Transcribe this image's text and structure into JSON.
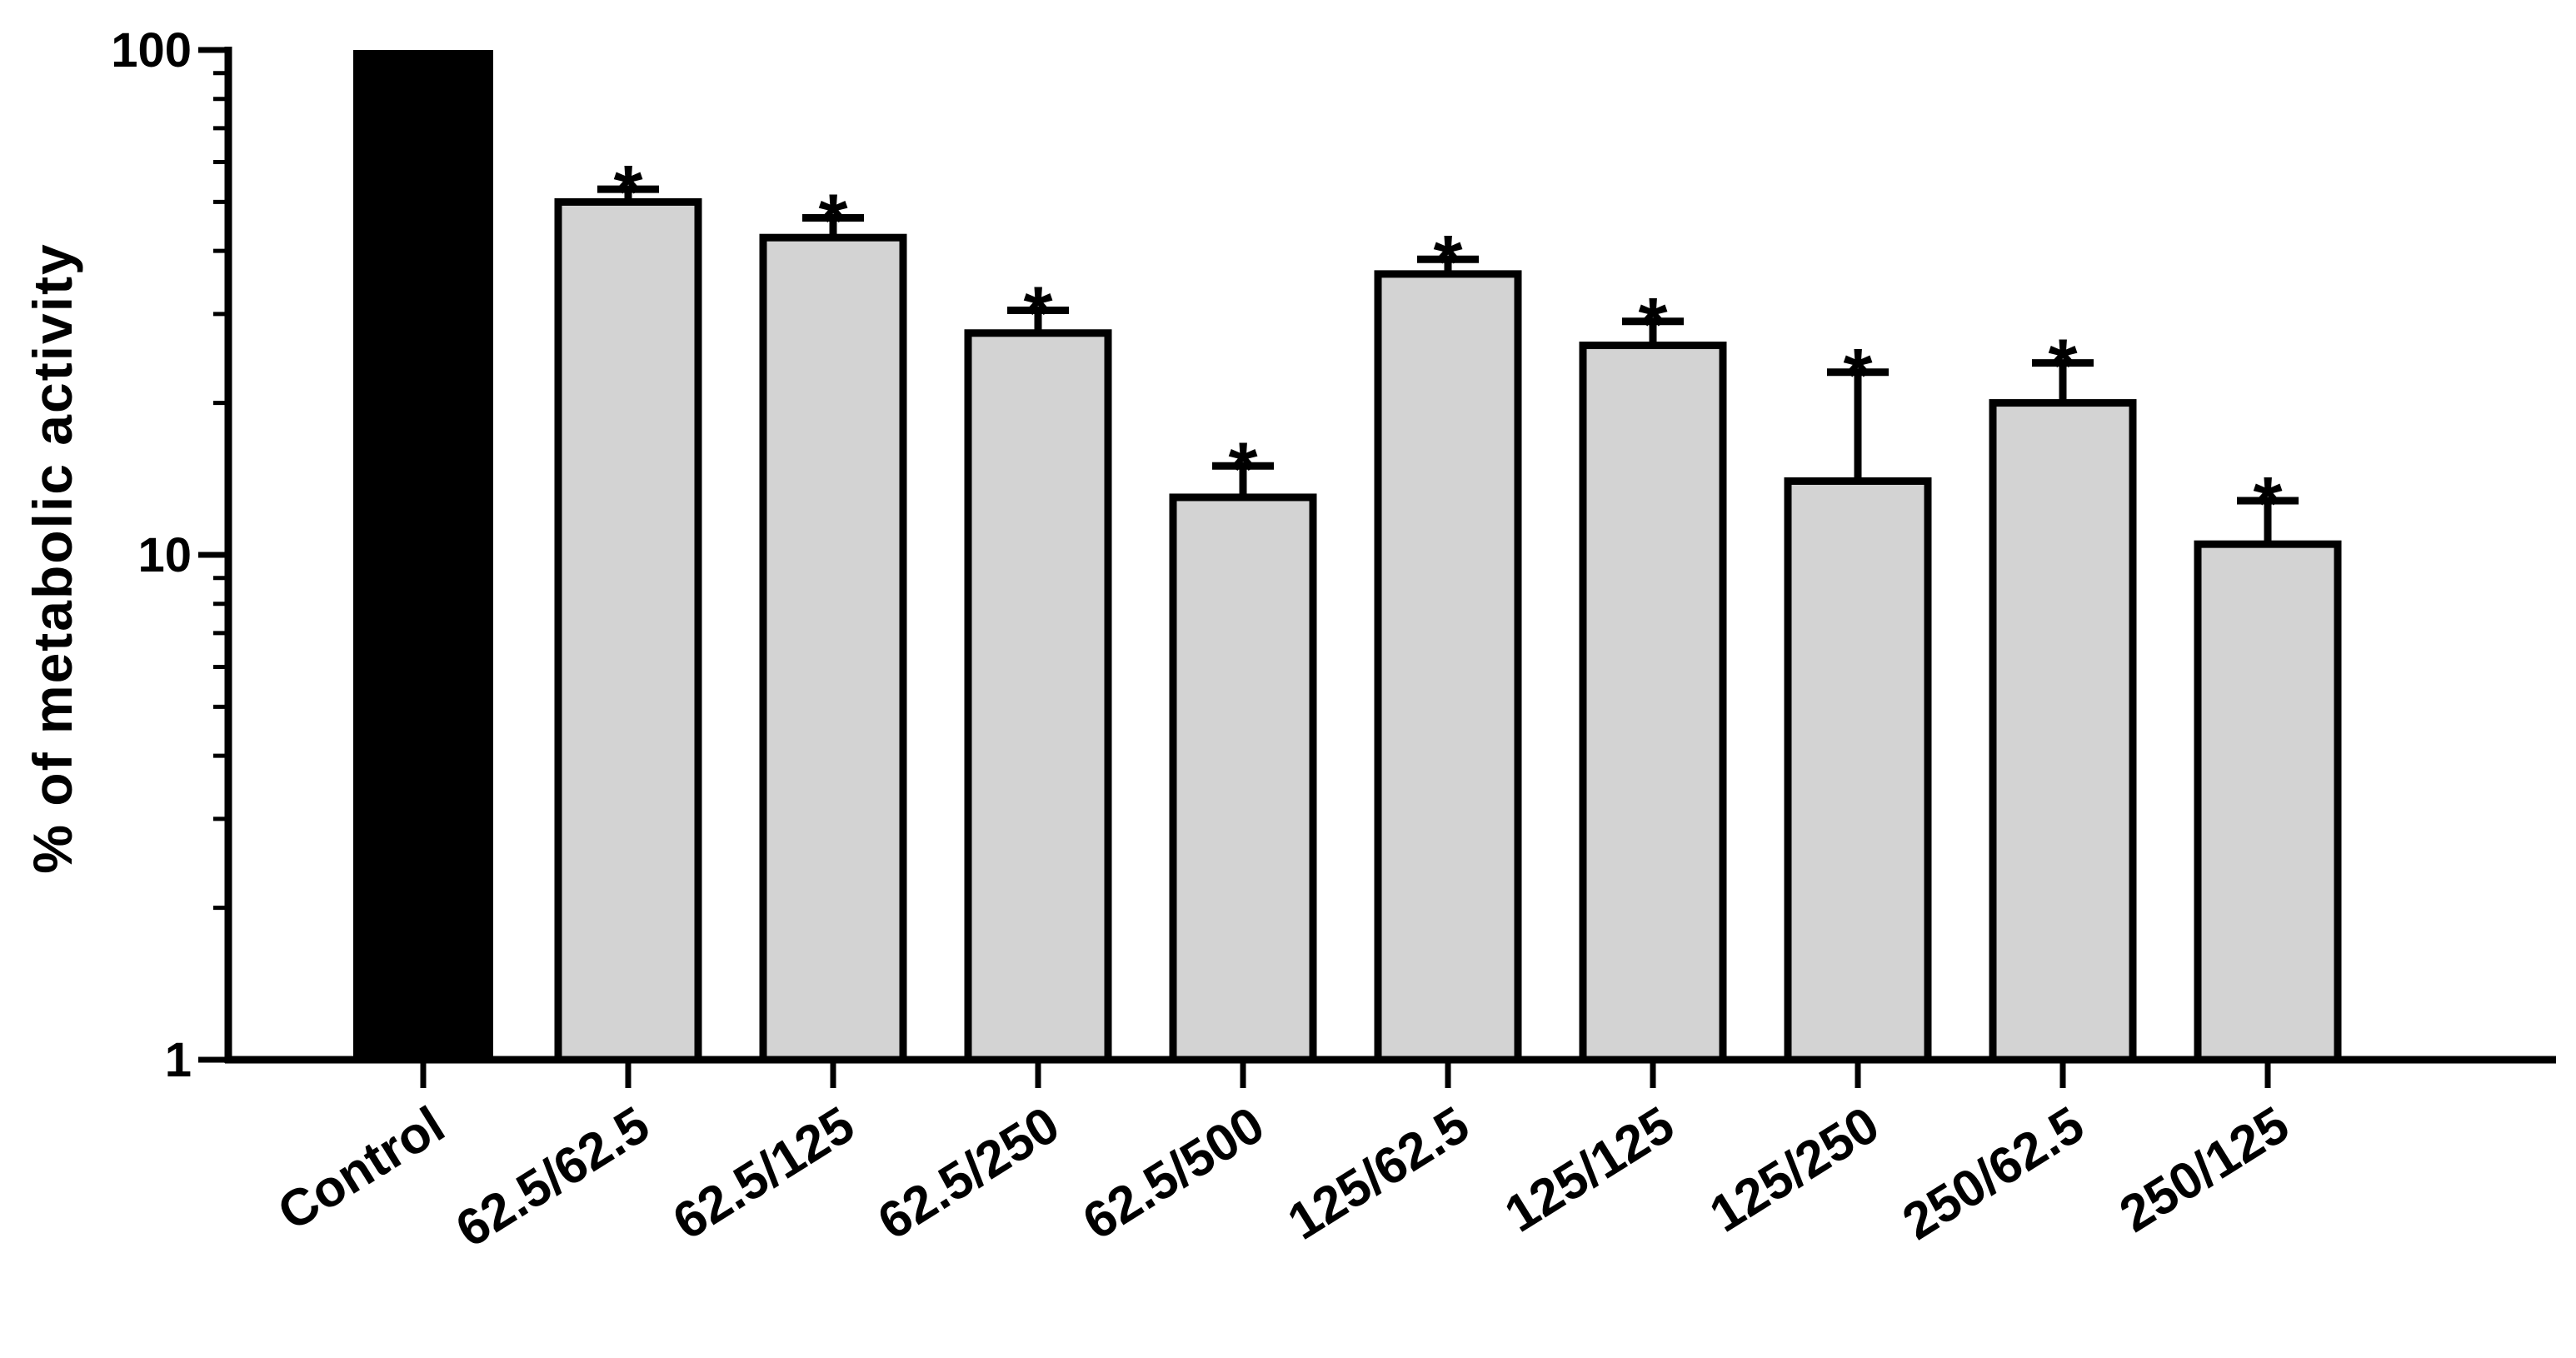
{
  "chart_data": {
    "type": "bar",
    "title": "",
    "xlabel": "",
    "ylabel": "% of metabolic activity",
    "yscale": "log",
    "ylim": [
      1,
      100
    ],
    "yticks": [
      1,
      10,
      100
    ],
    "ytick_labels": [
      "1",
      "10",
      "100"
    ],
    "grid": false,
    "categories": [
      "Control",
      "62.5/62.5",
      "62.5/125",
      "62.5/250",
      "62.5/500",
      "125/62.5",
      "125/125",
      "125/250",
      "250/62.5",
      "250/125"
    ],
    "values": [
      100,
      50,
      42.5,
      27.5,
      13,
      36,
      26,
      14,
      20,
      10.5
    ],
    "error_upper": [
      100,
      53,
      46.5,
      30.5,
      15,
      38.5,
      29,
      23,
      24,
      12.8
    ],
    "bar_colors": [
      "#000000",
      "#d3d3d3",
      "#d3d3d3",
      "#d3d3d3",
      "#d3d3d3",
      "#d3d3d3",
      "#d3d3d3",
      "#d3d3d3",
      "#d3d3d3",
      "#d3d3d3"
    ],
    "significance": [
      "",
      "*",
      "*",
      "*",
      "*",
      "*",
      "*",
      "*",
      "*",
      "*"
    ]
  }
}
